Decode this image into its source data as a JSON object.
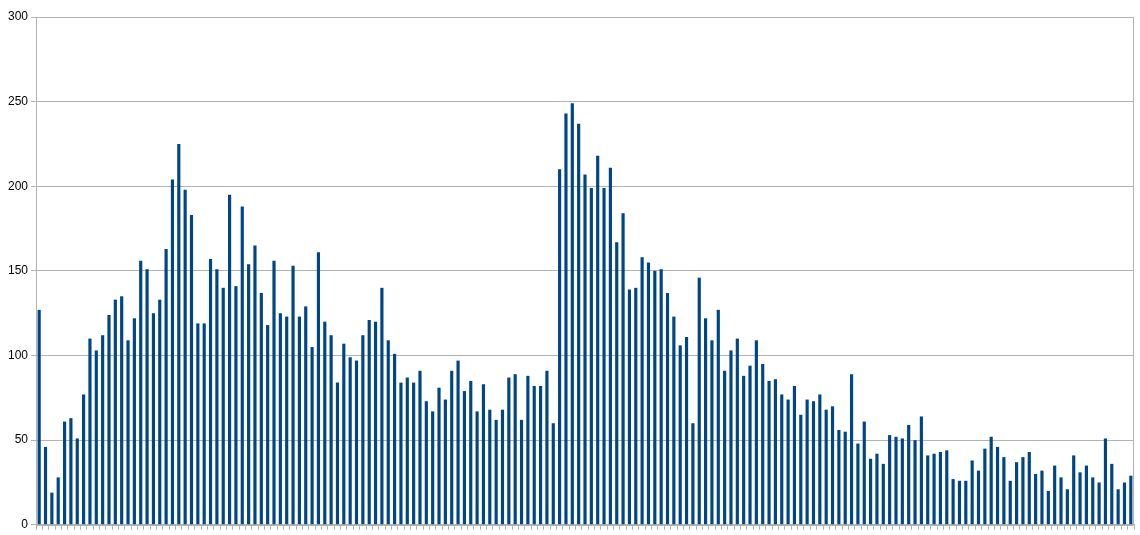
{
  "chart_data": {
    "type": "bar",
    "categories": [
      null,
      null,
      null,
      null,
      null,
      null,
      null,
      null,
      null,
      null,
      null,
      null,
      null,
      null,
      null,
      null,
      null,
      null,
      null,
      null,
      null,
      null,
      null,
      null,
      null,
      null,
      null,
      null,
      null,
      null,
      null,
      null,
      null,
      null,
      null,
      null,
      null,
      null,
      null,
      null,
      null,
      null,
      null,
      null,
      null,
      null,
      null,
      null,
      null,
      null,
      null,
      null,
      null,
      null,
      null,
      null,
      null,
      null,
      null,
      null,
      null,
      null,
      null,
      null,
      null,
      null,
      null,
      null,
      null,
      null,
      null,
      null,
      null,
      null,
      null,
      null,
      null,
      null,
      null,
      null,
      null,
      null,
      null,
      null,
      null,
      null,
      null,
      null,
      null,
      null,
      null,
      null,
      null,
      null,
      null,
      null,
      null,
      null,
      null,
      null,
      null,
      null,
      null,
      null,
      null,
      null,
      null,
      null,
      null,
      null,
      null,
      null,
      null,
      null,
      null,
      null,
      null,
      null,
      null,
      null,
      null,
      null,
      null,
      null,
      null,
      null,
      null,
      null,
      null,
      null,
      null,
      null,
      null,
      null,
      null,
      null,
      null,
      null,
      null,
      null,
      null,
      null,
      null,
      null,
      null,
      null,
      null,
      null,
      null,
      null,
      null,
      null,
      null,
      null,
      null,
      null,
      null,
      null,
      null,
      null,
      null,
      null,
      null,
      null,
      null,
      null,
      null,
      null,
      null,
      null,
      null,
      null,
      null
    ],
    "values": [
      127,
      46,
      19,
      28,
      61,
      63,
      51,
      77,
      110,
      103,
      112,
      124,
      133,
      135,
      109,
      122,
      156,
      151,
      125,
      133,
      163,
      204,
      225,
      198,
      183,
      119,
      119,
      157,
      151,
      140,
      195,
      141,
      188,
      154,
      165,
      137,
      118,
      156,
      125,
      123,
      153,
      123,
      129,
      105,
      161,
      120,
      112,
      84,
      107,
      99,
      97,
      112,
      121,
      120,
      140,
      109,
      101,
      84,
      87,
      84,
      91,
      73,
      67,
      81,
      74,
      91,
      97,
      79,
      85,
      67,
      83,
      68,
      62,
      68,
      87,
      89,
      62,
      88,
      82,
      82,
      91,
      60,
      210,
      243,
      249,
      237,
      207,
      199,
      218,
      199,
      211,
      167,
      184,
      139,
      140,
      158,
      155,
      150,
      151,
      137,
      123,
      106,
      111,
      60,
      146,
      122,
      109,
      127,
      91,
      103,
      110,
      88,
      94,
      109,
      95,
      85,
      86,
      77,
      74,
      82,
      65,
      74,
      73,
      77,
      68,
      70,
      56,
      55,
      89,
      48,
      61,
      39,
      42,
      36,
      53,
      52,
      51,
      59,
      50,
      64,
      41,
      42,
      43,
      44,
      27,
      26,
      26,
      38,
      32,
      45,
      52,
      46,
      40,
      26,
      37,
      40,
      43,
      30,
      32,
      20,
      35,
      28,
      21,
      41,
      31,
      35,
      28,
      25,
      51,
      36,
      21,
      25,
      29
    ],
    "color": "#004586",
    "ylim": [
      0,
      300
    ],
    "yticks": [
      0,
      50,
      100,
      150,
      200,
      250,
      300
    ],
    "grid": "y",
    "tick_labels": "y"
  }
}
